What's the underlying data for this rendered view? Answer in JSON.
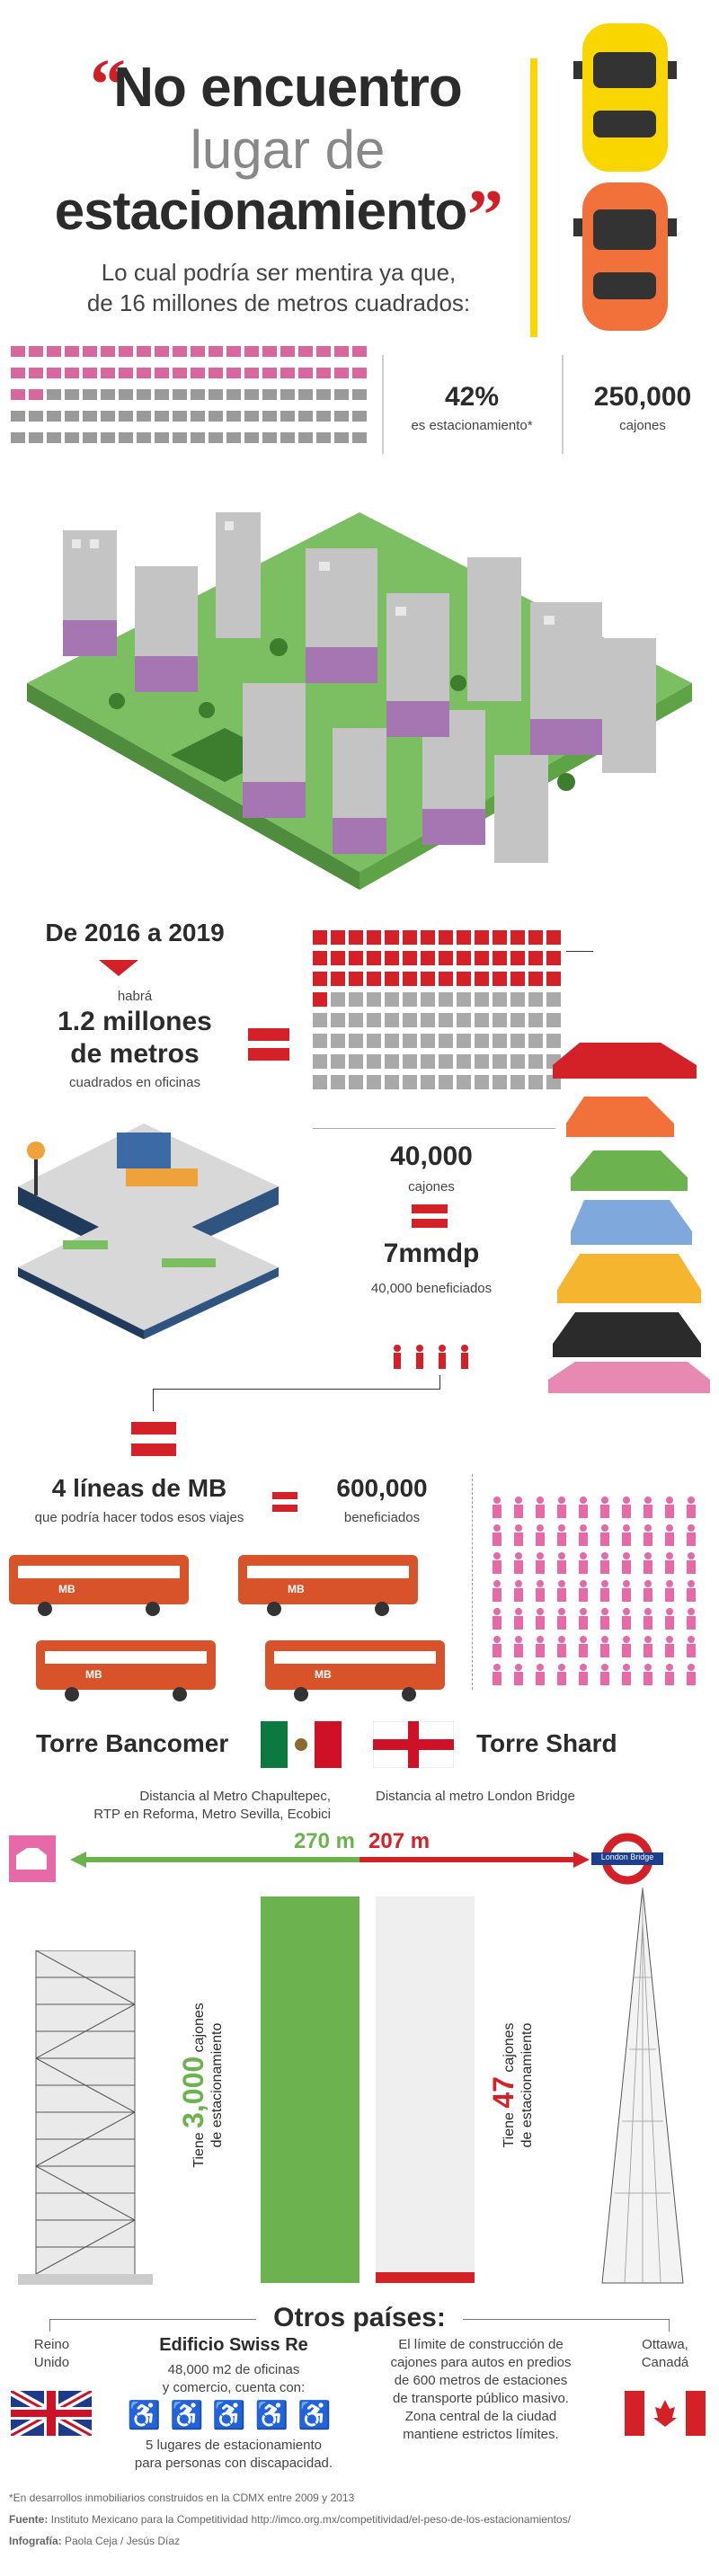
{
  "colors": {
    "red": "#d42027",
    "pink": "#d9679f",
    "gray": "#9a9a9a",
    "green": "#6cb350",
    "yellow": "#fad600"
  },
  "header": {
    "open_quote": "“",
    "line1": "No encuentro",
    "line2": "lugar de",
    "line3": "estacionamiento",
    "close_quote": "”",
    "sub1": "Lo cual podría ser mentira ya que,",
    "sub2": "de 16 millones de metros cuadrados:"
  },
  "stats1": {
    "percent": "42%",
    "percent_label": "es estacionamiento*",
    "cajones": "250,000",
    "cajones_label": "cajones",
    "grid_share": 0.42
  },
  "section2016": {
    "title": "De 2016 a 2019",
    "line1": "habrá",
    "line2": "1.2 millones",
    "line3": "de metros",
    "line4": "cuadrados en oficinas",
    "cajones": "40,000",
    "cajones_label": "cajones",
    "money": "7mmdp",
    "beneficiados": "40,000 beneficiados"
  },
  "metrobus": {
    "lines": "4 líneas de MB",
    "desc": "que podría hacer todos esos viajes",
    "value": "600,000",
    "value_label": "beneficiados",
    "bus_logo": "MB"
  },
  "towers": {
    "left_name": "Torre Bancomer",
    "left_desc1": "Distancia al Metro Chapultepec,",
    "left_desc2": "RTP en Reforma, Metro Sevilla, Ecobici",
    "left_distance": "270 m",
    "left_cajones_prefix": "Tiene ",
    "left_cajones": "3,000",
    "left_cajones_suffix": " cajones",
    "left_cajones_2": "de estacionamiento",
    "right_name": "Torre Shard",
    "right_desc": "Distancia al metro London Bridge",
    "right_distance": "207 m",
    "right_cajones_prefix": "Tiene ",
    "right_cajones": "47",
    "right_cajones_suffix": " cajones",
    "right_cajones_2": "de estacionamiento",
    "london_bridge": "London Bridge"
  },
  "otros": {
    "title": "Otros países:",
    "reino1": "Reino",
    "reino2": "Unido",
    "swiss_title": "Edificio Swiss Re",
    "swiss1": "48,000 m2 de oficinas",
    "swiss2": "y comercio, cuenta con:",
    "swiss3": "5 lugares de estacionamiento",
    "swiss4": "para personas con discapacidad.",
    "limit1": "El límite de construcción de",
    "limit2": "cajones para autos en predios",
    "limit3": "de 600 metros de estaciones",
    "limit4": "de transporte público masivo.",
    "limit5": "Zona central de la ciudad",
    "limit6": "mantiene estrictos límites.",
    "ottawa1": "Ottawa,",
    "ottawa2": "Canadá"
  },
  "footer": {
    "note": "*En desarrollos inmobiliarios construidos en la CDMX entre 2009 y 2013",
    "source_label": "Fuente: ",
    "source": "Instituto Mexicano para la Competitividad http://imco.org.mx/competitividad/el-peso-de-los-estacionamientos/",
    "credit_label": "Infografía: ",
    "credit": "Paola Ceja / Jesús Díaz"
  }
}
